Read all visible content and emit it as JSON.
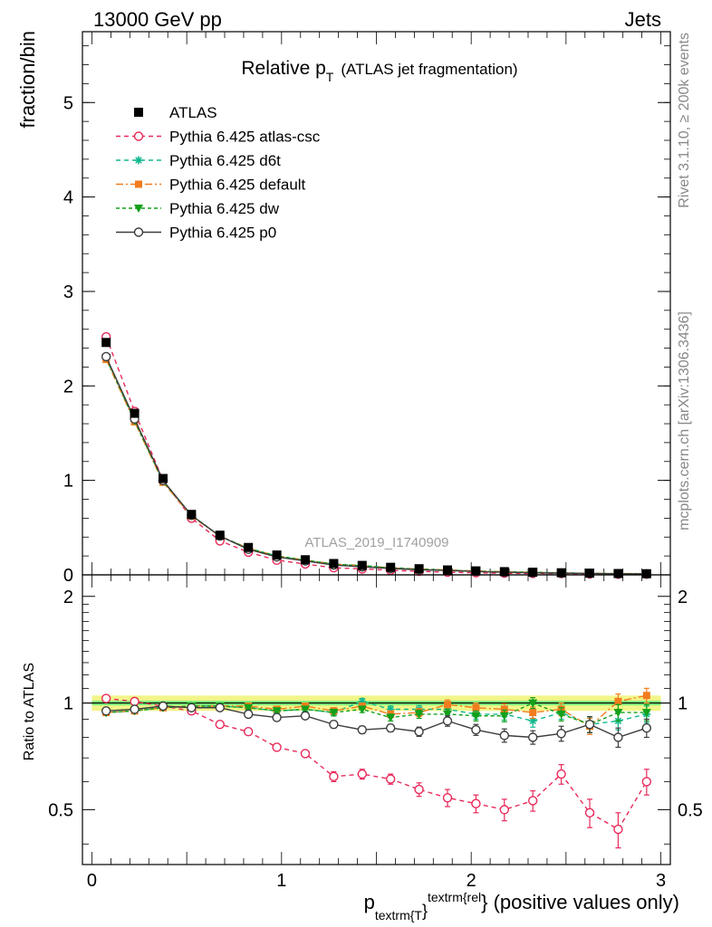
{
  "header": {
    "left": "13000 GeV pp",
    "right": "Jets",
    "side_top": "Rivet 3.1.10, ≥ 200k events",
    "side_bottom": "mcplots.cern.ch [arXiv:1306.3436]",
    "watermark": "ATLAS_2019_I1740909"
  },
  "colors": {
    "atlas": "#000000",
    "atlas_csc": "#e8295a",
    "d6t": "#10b88e",
    "default": "#f27c1e",
    "dw": "#13a01a",
    "p0": "#3d3d3d",
    "band_outer": "#f2f58a",
    "band_inner": "#7ef07a"
  },
  "chart_data": [
    {
      "type": "line",
      "title": "Relative p",
      "title_sub": "T",
      "title_suffix": "(ATLAS jet fragmentation)",
      "ylabel": "fraction/bin",
      "xlim": [
        -0.05,
        3.05
      ],
      "ylim": [
        0,
        5.75
      ],
      "yticks": [
        "0",
        "1",
        "2",
        "3",
        "4",
        "5"
      ],
      "x": [
        0.075,
        0.225,
        0.375,
        0.525,
        0.675,
        0.825,
        0.975,
        1.125,
        1.275,
        1.425,
        1.575,
        1.725,
        1.875,
        2.025,
        2.175,
        2.325,
        2.475,
        2.625,
        2.775,
        2.925
      ],
      "reference": {
        "name": "ATLAS",
        "values": [
          2.46,
          1.71,
          1.02,
          0.64,
          0.42,
          0.29,
          0.21,
          0.16,
          0.12,
          0.1,
          0.08,
          0.065,
          0.052,
          0.042,
          0.034,
          0.028,
          0.022,
          0.018,
          0.014,
          0.012
        ]
      },
      "series": [
        {
          "name": "Pythia 6.425 atlas-csc",
          "values": [
            2.52,
            1.73,
            1.0,
            0.6,
            0.36,
            0.24,
            0.155,
            0.115,
            0.075,
            0.063,
            0.048,
            0.037,
            0.028,
            0.022,
            0.017,
            0.015,
            0.014,
            0.009,
            0.006,
            0.007
          ]
        },
        {
          "name": "Pythia 6.425 d6t",
          "values": [
            2.29,
            1.63,
            0.99,
            0.63,
            0.41,
            0.28,
            0.2,
            0.155,
            0.115,
            0.1,
            0.077,
            0.062,
            0.05,
            0.039,
            0.031,
            0.025,
            0.021,
            0.016,
            0.012,
            0.011
          ]
        },
        {
          "name": "Pythia 6.425 default",
          "values": [
            2.28,
            1.62,
            0.98,
            0.62,
            0.41,
            0.28,
            0.2,
            0.157,
            0.114,
            0.098,
            0.074,
            0.061,
            0.052,
            0.041,
            0.033,
            0.026,
            0.021,
            0.016,
            0.014,
            0.013
          ]
        },
        {
          "name": "Pythia 6.425 dw",
          "values": [
            2.3,
            1.63,
            0.99,
            0.63,
            0.41,
            0.28,
            0.2,
            0.155,
            0.112,
            0.096,
            0.073,
            0.06,
            0.049,
            0.039,
            0.031,
            0.028,
            0.02,
            0.016,
            0.013,
            0.011
          ]
        },
        {
          "name": "Pythia 6.425 p0",
          "values": [
            2.31,
            1.65,
            1.0,
            0.63,
            0.41,
            0.27,
            0.19,
            0.147,
            0.104,
            0.084,
            0.067,
            0.054,
            0.046,
            0.035,
            0.027,
            0.022,
            0.018,
            0.015,
            0.011,
            0.01
          ]
        }
      ]
    },
    {
      "type": "line",
      "ylabel": "Ratio to ATLAS",
      "xlabel_prefix": "p",
      "xlabel_sub": "textrm{T",
      "xlabel_sup": "textrm{rel",
      "xlabel_brace": "}",
      "xlabel_suffix": "} (positive values only)",
      "xlim": [
        -0.05,
        3.05
      ],
      "ylim": [
        0.35,
        2.3
      ],
      "yticks": [
        "0.5",
        "1",
        "2"
      ],
      "xticks": [
        "0",
        "1",
        "2",
        "3"
      ],
      "x": [
        0.075,
        0.225,
        0.375,
        0.525,
        0.675,
        0.825,
        0.975,
        1.125,
        1.275,
        1.425,
        1.575,
        1.725,
        1.875,
        2.025,
        2.175,
        2.325,
        2.475,
        2.625,
        2.775,
        2.925
      ],
      "band": {
        "outer": [
          0.95,
          1.05
        ],
        "inner": [
          0.985,
          1.015
        ]
      },
      "series": [
        {
          "name": "Pythia 6.425 atlas-csc",
          "values": [
            1.03,
            1.01,
            0.98,
            0.95,
            0.87,
            0.83,
            0.75,
            0.72,
            0.62,
            0.63,
            0.61,
            0.57,
            0.54,
            0.52,
            0.5,
            0.53,
            0.63,
            0.49,
            0.44,
            0.6
          ],
          "errors": [
            0.01,
            0.01,
            0.01,
            0.01,
            0.01,
            0.01,
            0.01,
            0.015,
            0.02,
            0.02,
            0.02,
            0.025,
            0.03,
            0.03,
            0.035,
            0.035,
            0.04,
            0.045,
            0.05,
            0.05
          ]
        },
        {
          "name": "Pythia 6.425 d6t",
          "values": [
            0.94,
            0.95,
            0.97,
            0.98,
            0.98,
            0.97,
            0.95,
            0.96,
            0.94,
            1.01,
            0.96,
            0.96,
            0.96,
            0.93,
            0.93,
            0.89,
            0.94,
            0.87,
            0.89,
            0.93
          ],
          "errors": [
            0.01,
            0.01,
            0.01,
            0.01,
            0.01,
            0.01,
            0.01,
            0.015,
            0.02,
            0.02,
            0.02,
            0.025,
            0.03,
            0.03,
            0.035,
            0.035,
            0.04,
            0.045,
            0.05,
            0.05
          ]
        },
        {
          "name": "Pythia 6.425 default",
          "values": [
            0.94,
            0.95,
            0.97,
            0.98,
            0.98,
            0.98,
            0.96,
            0.98,
            0.95,
            0.98,
            0.93,
            0.94,
            0.99,
            0.97,
            0.96,
            0.94,
            0.96,
            0.86,
            1.01,
            1.05
          ],
          "errors": [
            0.01,
            0.01,
            0.01,
            0.01,
            0.01,
            0.01,
            0.01,
            0.015,
            0.02,
            0.02,
            0.02,
            0.025,
            0.03,
            0.03,
            0.035,
            0.035,
            0.04,
            0.045,
            0.05,
            0.05
          ]
        },
        {
          "name": "Pythia 6.425 dw",
          "values": [
            0.94,
            0.95,
            0.97,
            0.98,
            0.98,
            0.97,
            0.95,
            0.96,
            0.94,
            0.96,
            0.91,
            0.93,
            0.93,
            0.92,
            0.92,
            1.0,
            0.93,
            0.87,
            0.94,
            0.94
          ],
          "errors": [
            0.01,
            0.01,
            0.01,
            0.01,
            0.01,
            0.01,
            0.01,
            0.015,
            0.02,
            0.02,
            0.02,
            0.025,
            0.03,
            0.03,
            0.035,
            0.035,
            0.04,
            0.045,
            0.05,
            0.05
          ]
        },
        {
          "name": "Pythia 6.425 p0",
          "values": [
            0.95,
            0.96,
            0.98,
            0.97,
            0.97,
            0.93,
            0.91,
            0.92,
            0.87,
            0.84,
            0.85,
            0.83,
            0.89,
            0.84,
            0.81,
            0.8,
            0.82,
            0.87,
            0.8,
            0.85
          ],
          "errors": [
            0.01,
            0.01,
            0.01,
            0.01,
            0.01,
            0.01,
            0.01,
            0.015,
            0.02,
            0.02,
            0.02,
            0.025,
            0.03,
            0.03,
            0.035,
            0.035,
            0.04,
            0.045,
            0.05,
            0.05
          ]
        }
      ]
    }
  ]
}
